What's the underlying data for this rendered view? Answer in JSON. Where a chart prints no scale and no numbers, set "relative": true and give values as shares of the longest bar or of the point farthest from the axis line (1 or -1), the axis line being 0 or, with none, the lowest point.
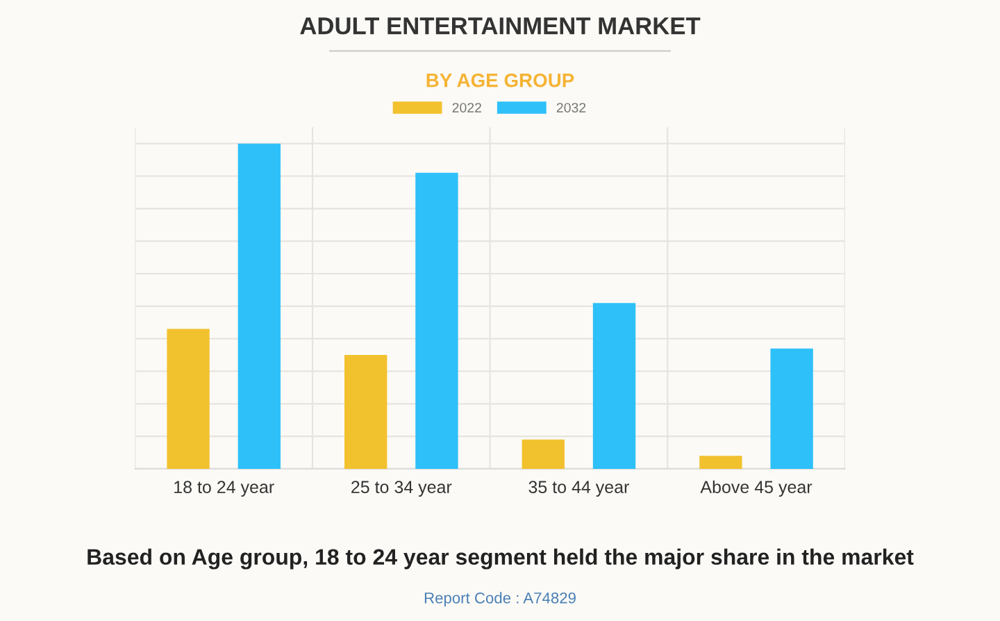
{
  "chart_data": {
    "type": "bar",
    "title": "ADULT ENTERTAINMENT MARKET",
    "subtitle": "BY AGE GROUP",
    "categories": [
      "18 to 24 year",
      "25 to 34 year",
      "35 to 44 year",
      "Above 45 year"
    ],
    "series": [
      {
        "name": "2022",
        "color": "#f2c12e",
        "values": [
          0.43,
          0.35,
          0.09,
          0.04
        ]
      },
      {
        "name": "2032",
        "color": "#2ec0f9",
        "values": [
          1,
          0.91,
          0.51,
          0.37
        ]
      }
    ],
    "relative": true,
    "grid": true,
    "legend": "top",
    "annotations": [
      "Based on Age group, 18 to 24 year segment held the major share in the market",
      "Report Code : A74829"
    ]
  }
}
